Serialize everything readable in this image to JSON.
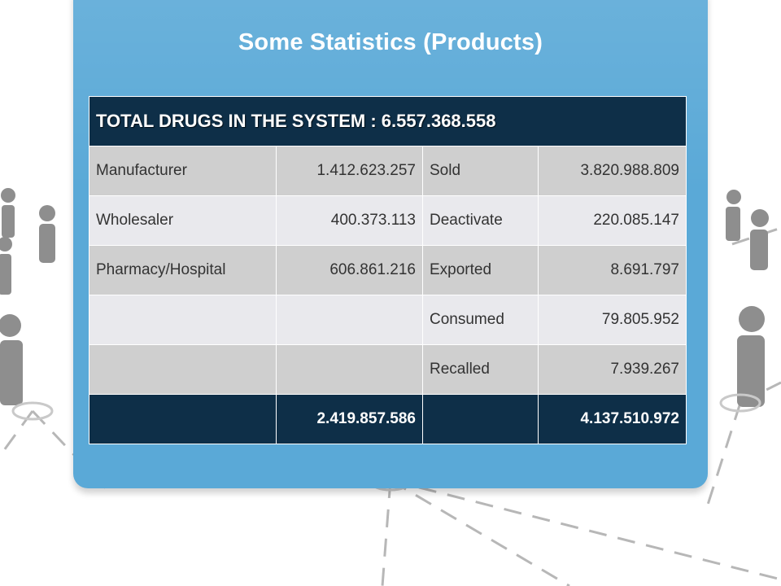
{
  "slide": {
    "title": "Some Statistics (Products)"
  },
  "table": {
    "header": "TOTAL DRUGS IN THE SYSTEM : 6.557.368.558",
    "rows": [
      {
        "label_a": "Manufacturer",
        "value_a": "1.412.623.257",
        "label_b": "Sold",
        "value_b": "3.820.988.809"
      },
      {
        "label_a": "Wholesaler",
        "value_a": "400.373.113",
        "label_b": "Deactivate",
        "value_b": "220.085.147"
      },
      {
        "label_a": "Pharmacy/Hospital",
        "value_a": "606.861.216",
        "label_b": "Exported",
        "value_b": "8.691.797"
      },
      {
        "label_a": "",
        "value_a": "",
        "label_b": "Consumed",
        "value_b": "79.805.952"
      },
      {
        "label_a": "",
        "value_a": "",
        "label_b": "Recalled",
        "value_b": "7.939.267"
      }
    ],
    "totals": {
      "total_a": "2.419.857.586",
      "total_b": "4.137.510.972"
    }
  },
  "colors": {
    "panel": "#5aa9d7",
    "header_bg": "#0e2f48",
    "row_dark": "#cfcfcf",
    "row_light": "#e9e9ed"
  },
  "decor": {
    "background_icons": [
      "person-figure-icon",
      "network-line"
    ]
  }
}
